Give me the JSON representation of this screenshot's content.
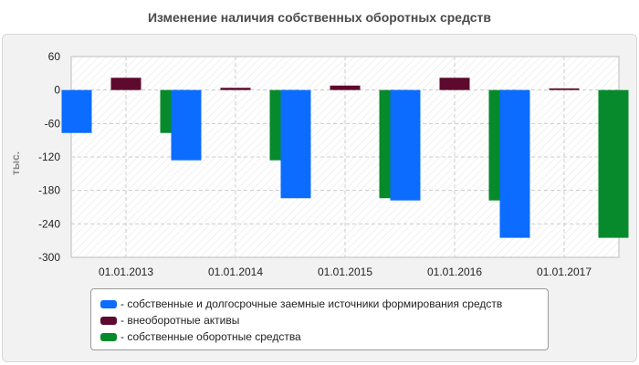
{
  "colors": {
    "own_long_term": "#0b6cff",
    "non_current": "#5e0a2e",
    "working_capital": "#068a2c"
  },
  "chart_data": {
    "type": "bar",
    "title": "Изменение наличия собственных оборотных средств",
    "ylabel": "тыс.",
    "ylim": [
      -300,
      60
    ],
    "yticks": [
      "60",
      "0",
      "-60",
      "-120",
      "-180",
      "-240",
      "-300"
    ],
    "categories": [
      "01.01.2013",
      "01.01.2014",
      "01.01.2015",
      "01.01.2016",
      "01.01.2017"
    ],
    "series": [
      {
        "name": "- собственные и долгосрочные заемные источники формирования средств",
        "color": "#0b6cff",
        "values": [
          -77,
          -126,
          -194,
          -198,
          -265
        ]
      },
      {
        "name": "- внеоборотные активы",
        "color": "#5e0a2e",
        "values": [
          22,
          4,
          8,
          22,
          3
        ]
      },
      {
        "name": "- собственные оборотные средства",
        "color": "#068a2c",
        "values": [
          -77,
          -126,
          -194,
          -198,
          -265
        ]
      }
    ],
    "grid": true,
    "legend_position": "bottom"
  }
}
